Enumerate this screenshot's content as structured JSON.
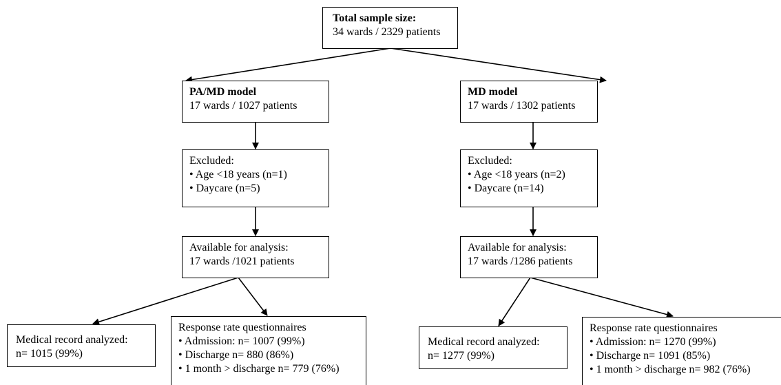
{
  "total": {
    "title": "Total sample size:",
    "line": "34 wards / 2329 patients"
  },
  "left": {
    "model": {
      "title": "PA/MD model",
      "line": "17 wards / 1027 patients"
    },
    "excluded": {
      "title": "Excluded:",
      "items": [
        "• Age <18 years (n=1)",
        "• Daycare  (n=5)"
      ]
    },
    "available": {
      "title": "Available for analysis:",
      "line": "17 wards /1021 patients"
    },
    "medical": {
      "title": "Medical record analyzed:",
      "line": "n=  1015 (99%)"
    },
    "response": {
      "title": "Response rate questionnaires",
      "items": [
        "• Admission: n= 1007 (99%)",
        "• Discharge n= 880 (86%)",
        "• 1 month > discharge n= 779 (76%)"
      ]
    }
  },
  "right": {
    "model": {
      "title": "MD model",
      "line": "17 wards / 1302 patients"
    },
    "excluded": {
      "title": "Excluded:",
      "items": [
        "• Age <18 years (n=2)",
        "• Daycare  (n=14)"
      ]
    },
    "available": {
      "title": "Available for analysis:",
      "line": "17 wards /1286 patients"
    },
    "medical": {
      "title": "Medical record analyzed:",
      "line": "n=  1277 (99%)"
    },
    "response": {
      "title": "Response rate questionnaires",
      "items": [
        "• Admission: n= 1270 (99%)",
        "• Discharge n= 1091 (85%)",
        "• 1 month > discharge n= 982 (76%)"
      ]
    }
  }
}
